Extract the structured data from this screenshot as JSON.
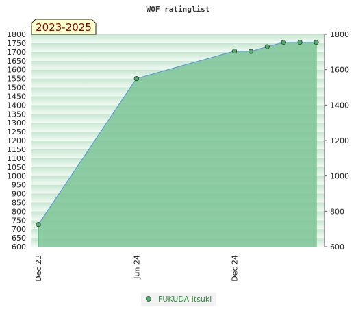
{
  "chart_data": {
    "type": "area",
    "title": "WOF ratinglist",
    "period_badge": "2023-2025",
    "x_ticks": [
      "Dec 23",
      "Jun 24",
      "Dec 24"
    ],
    "x_tick_values": [
      0,
      6,
      12
    ],
    "xlim": [
      0,
      17
    ],
    "ylim": [
      600,
      1800
    ],
    "left_ticks": [
      600,
      650,
      700,
      750,
      800,
      850,
      900,
      950,
      1000,
      1050,
      1100,
      1150,
      1200,
      1250,
      1300,
      1350,
      1400,
      1450,
      1500,
      1550,
      1600,
      1650,
      1700,
      1750,
      1800
    ],
    "right_ticks": [
      600,
      800,
      1000,
      1200,
      1400,
      1600,
      1800
    ],
    "legend_position": "bottom",
    "series": [
      {
        "name": "FUKUDA Itsuki",
        "x": [
          0,
          6,
          12,
          13,
          14,
          15,
          16,
          17
        ],
        "values": [
          725,
          1550,
          1705,
          1703,
          1730,
          1755,
          1755,
          1755
        ]
      }
    ],
    "colors": {
      "fill": "#7cc497",
      "line": "#5b9bd5",
      "marker": "#4caf6a",
      "badge_bg": "#ffffcc"
    }
  }
}
